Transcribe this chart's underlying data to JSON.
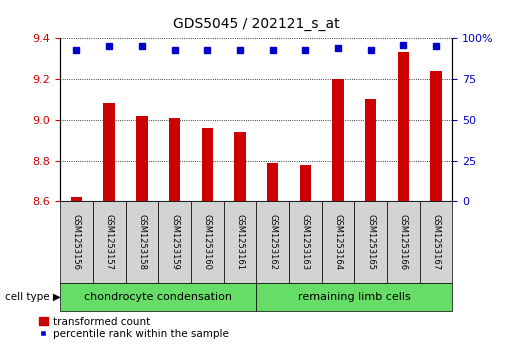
{
  "title": "GDS5045 / 202121_s_at",
  "samples": [
    "GSM1253156",
    "GSM1253157",
    "GSM1253158",
    "GSM1253159",
    "GSM1253160",
    "GSM1253161",
    "GSM1253162",
    "GSM1253163",
    "GSM1253164",
    "GSM1253165",
    "GSM1253166",
    "GSM1253167"
  ],
  "transformed_count": [
    8.62,
    9.08,
    9.02,
    9.01,
    8.96,
    8.94,
    8.79,
    8.78,
    9.2,
    9.1,
    9.33,
    9.24
  ],
  "percentile_rank": [
    93,
    95,
    95,
    93,
    93,
    93,
    93,
    93,
    94,
    93,
    96,
    95
  ],
  "ylim_left": [
    8.6,
    9.4
  ],
  "ylim_right": [
    0,
    100
  ],
  "yticks_left": [
    8.6,
    8.8,
    9.0,
    9.2,
    9.4
  ],
  "yticks_right": [
    0,
    25,
    50,
    75,
    100
  ],
  "bar_color": "#cc0000",
  "dot_color": "#0000cc",
  "groups": [
    {
      "label": "chondrocyte condensation",
      "n": 6,
      "color": "#66dd66"
    },
    {
      "label": "remaining limb cells",
      "n": 6,
      "color": "#66dd66"
    }
  ],
  "group_row_label": "cell type",
  "legend_bar_label": "transformed count",
  "legend_dot_label": "percentile rank within the sample",
  "sample_box_color": "#d3d3d3",
  "title_fontsize": 10,
  "tick_fontsize": 8,
  "label_fontsize": 8
}
